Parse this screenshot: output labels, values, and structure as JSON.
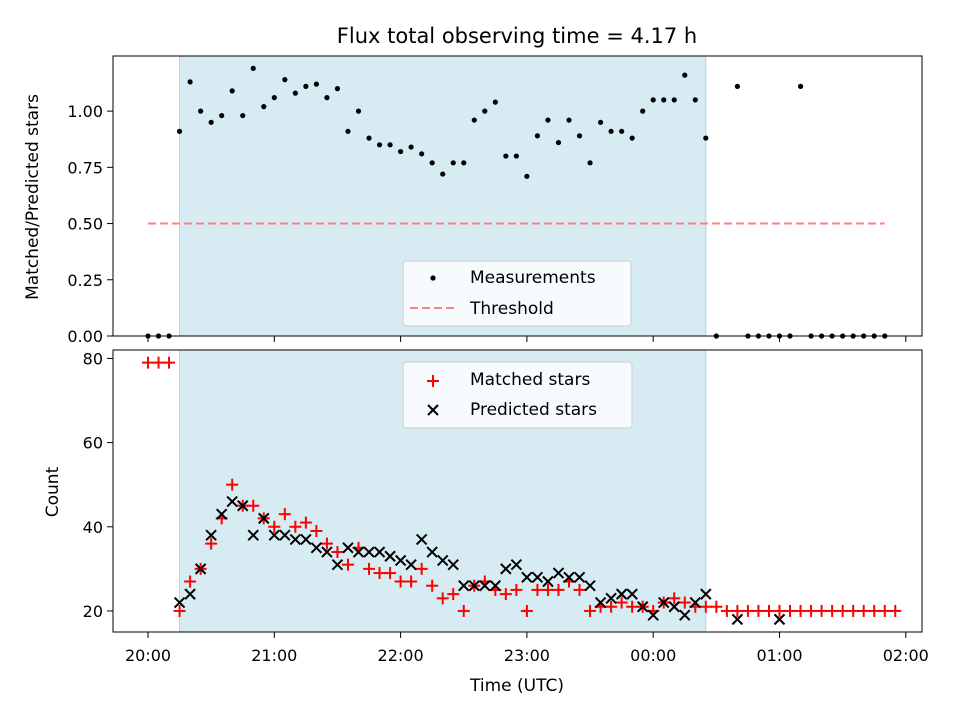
{
  "chart_data": [
    {
      "type": "scatter",
      "title": "Flux total observing time = 4.17 h",
      "xlabel": "",
      "ylabel": "Matched/Predicted stars",
      "ylim": [
        0,
        1.245
      ],
      "yticks": [
        "0.00",
        "0.25",
        "0.50",
        "0.75",
        "1.00"
      ],
      "ytick_values": [
        0,
        0.25,
        0.5,
        0.75,
        1.0
      ],
      "observing_window": [
        "20:15",
        "00:25"
      ],
      "legend_position": "lower-center",
      "series": [
        {
          "name": "Measurements",
          "marker": "dot",
          "color": "#000000",
          "x": [
            "20:00",
            "20:05",
            "20:10",
            "20:15",
            "20:20",
            "20:25",
            "20:30",
            "20:35",
            "20:40",
            "20:45",
            "20:50",
            "20:55",
            "21:00",
            "21:05",
            "21:10",
            "21:15",
            "21:20",
            "21:25",
            "21:30",
            "21:35",
            "21:40",
            "21:45",
            "21:50",
            "21:55",
            "22:00",
            "22:05",
            "22:10",
            "22:15",
            "22:20",
            "22:25",
            "22:30",
            "22:35",
            "22:40",
            "22:45",
            "22:50",
            "22:55",
            "23:00",
            "23:05",
            "23:10",
            "23:15",
            "23:20",
            "23:25",
            "23:30",
            "23:35",
            "23:40",
            "23:45",
            "23:50",
            "23:55",
            "00:00",
            "00:05",
            "00:10",
            "00:15",
            "00:20",
            "00:25",
            "00:30",
            "00:40",
            "00:45",
            "00:50",
            "00:55",
            "01:00",
            "01:05",
            "01:10",
            "01:15",
            "01:20",
            "01:25",
            "01:30",
            "01:35",
            "01:40",
            "01:45",
            "01:50"
          ],
          "y": [
            0,
            0,
            0,
            0.91,
            1.13,
            1.0,
            0.95,
            0.98,
            1.09,
            0.98,
            1.19,
            1.02,
            1.06,
            1.14,
            1.08,
            1.11,
            1.12,
            1.06,
            1.1,
            0.91,
            1.0,
            0.88,
            0.85,
            0.85,
            0.82,
            0.84,
            0.81,
            0.77,
            0.72,
            0.77,
            0.77,
            0.96,
            1.0,
            1.04,
            0.8,
            0.8,
            0.71,
            0.89,
            0.96,
            0.86,
            0.96,
            0.89,
            0.77,
            0.95,
            0.91,
            0.91,
            0.88,
            1.0,
            1.05,
            1.05,
            1.05,
            1.16,
            1.05,
            0.88,
            0,
            1.11,
            0,
            0,
            0,
            0,
            0,
            1.11,
            0,
            0,
            0,
            0,
            0,
            0,
            0,
            0
          ]
        },
        {
          "name": "Threshold",
          "marker": "dashed-line",
          "color": "#ff8080",
          "x": [
            "20:00",
            "01:50"
          ],
          "y": [
            0.5,
            0.5
          ]
        }
      ]
    },
    {
      "type": "scatter",
      "title": "",
      "xlabel": "Time (UTC)",
      "ylabel": "Count",
      "ylim": [
        15,
        82
      ],
      "yticks": [
        "20",
        "40",
        "60",
        "80"
      ],
      "ytick_values": [
        20,
        40,
        60,
        80
      ],
      "xticks": [
        "20:00",
        "21:00",
        "22:00",
        "23:00",
        "00:00",
        "01:00",
        "02:00"
      ],
      "observing_window": [
        "20:15",
        "00:25"
      ],
      "legend_position": "upper-center",
      "series": [
        {
          "name": "Matched stars",
          "marker": "plus",
          "color": "#ff0000",
          "x": [
            "20:00",
            "20:05",
            "20:10",
            "20:15",
            "20:20",
            "20:25",
            "20:30",
            "20:35",
            "20:40",
            "20:45",
            "20:50",
            "20:55",
            "21:00",
            "21:05",
            "21:10",
            "21:15",
            "21:20",
            "21:25",
            "21:30",
            "21:35",
            "21:40",
            "21:45",
            "21:50",
            "21:55",
            "22:00",
            "22:05",
            "22:10",
            "22:15",
            "22:20",
            "22:25",
            "22:30",
            "22:35",
            "22:40",
            "22:45",
            "22:50",
            "22:55",
            "23:00",
            "23:05",
            "23:10",
            "23:15",
            "23:20",
            "23:25",
            "23:30",
            "23:35",
            "23:40",
            "23:45",
            "23:50",
            "23:55",
            "00:00",
            "00:05",
            "00:10",
            "00:15",
            "00:20",
            "00:25",
            "00:30",
            "00:35",
            "00:40",
            "00:45",
            "00:50",
            "00:55",
            "01:00",
            "01:05",
            "01:10",
            "01:15",
            "01:20",
            "01:25",
            "01:30",
            "01:35",
            "01:40",
            "01:45",
            "01:50",
            "01:55"
          ],
          "y": [
            79,
            79,
            79,
            20,
            27,
            30,
            36,
            42,
            50,
            45,
            45,
            42,
            40,
            43,
            40,
            41,
            39,
            36,
            34,
            31,
            35,
            30,
            29,
            29,
            27,
            27,
            30,
            26,
            23,
            24,
            20,
            26,
            27,
            25,
            24,
            25,
            20,
            25,
            25,
            25,
            27,
            25,
            20,
            21,
            21,
            22,
            21,
            21,
            20,
            22,
            23,
            22,
            21,
            21,
            21,
            20,
            20,
            20,
            20,
            20,
            20,
            20,
            20,
            20,
            20,
            20,
            20,
            20,
            20,
            20,
            20,
            20
          ]
        },
        {
          "name": "Predicted stars",
          "marker": "x",
          "color": "#000000",
          "x": [
            "20:15",
            "20:20",
            "20:25",
            "20:30",
            "20:35",
            "20:40",
            "20:45",
            "20:50",
            "20:55",
            "21:00",
            "21:05",
            "21:10",
            "21:15",
            "21:20",
            "21:25",
            "21:30",
            "21:35",
            "21:40",
            "21:45",
            "21:50",
            "21:55",
            "22:00",
            "22:05",
            "22:10",
            "22:15",
            "22:20",
            "22:25",
            "22:30",
            "22:35",
            "22:40",
            "22:45",
            "22:50",
            "22:55",
            "23:00",
            "23:05",
            "23:10",
            "23:15",
            "23:20",
            "23:25",
            "23:30",
            "23:35",
            "23:40",
            "23:45",
            "23:50",
            "23:55",
            "00:00",
            "00:05",
            "00:10",
            "00:15",
            "00:20",
            "00:25",
            "00:40",
            "01:00"
          ],
          "y": [
            22,
            24,
            30,
            38,
            43,
            46,
            45,
            38,
            42,
            38,
            38,
            37,
            37,
            35,
            34,
            31,
            35,
            34,
            34,
            34,
            33,
            32,
            31,
            37,
            34,
            32,
            31,
            26,
            26,
            26,
            26,
            30,
            31,
            28,
            28,
            27,
            29,
            28,
            28,
            26,
            22,
            23,
            24,
            24,
            21,
            19,
            22,
            21,
            19,
            22,
            24,
            18,
            18
          ]
        }
      ]
    }
  ]
}
